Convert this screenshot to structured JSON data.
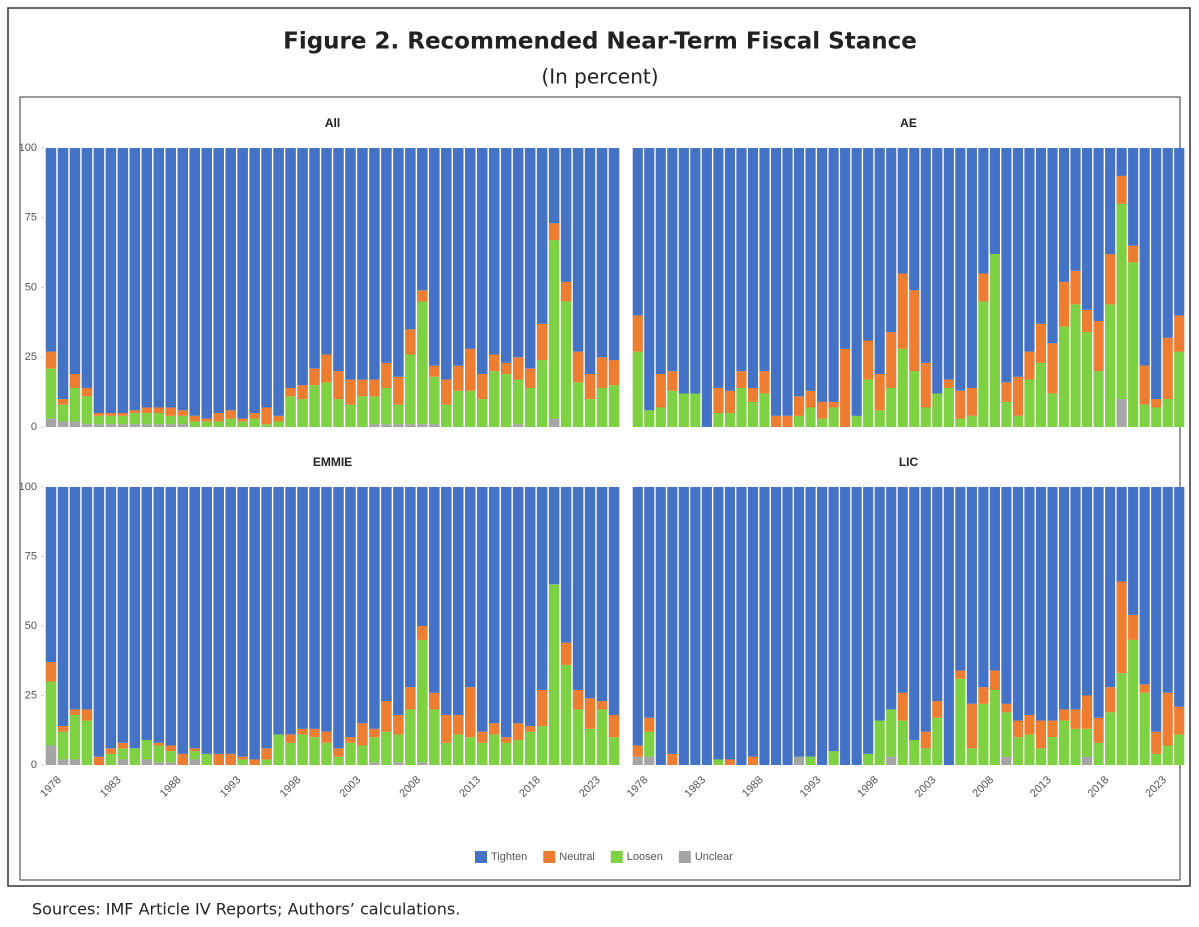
{
  "figure": {
    "title": "Figure 2. Recommended Near-Term Fiscal Stance",
    "subtitle": "(In percent)"
  },
  "source": "Sources: IMF Article IV Reports; Authors’ calculations.",
  "chart_data": [
    {
      "type": "bar",
      "stacked": true,
      "title": "All",
      "ylim": [
        0,
        100
      ],
      "yticks": [
        0,
        25,
        50,
        75,
        100
      ],
      "series": [
        {
          "name": "Tighten",
          "color": "#4472c4",
          "values": [
            73,
            90,
            81,
            86,
            95,
            95,
            95,
            94,
            93,
            93,
            93,
            94,
            96,
            97,
            95,
            94,
            97,
            95,
            93,
            96,
            86,
            85,
            79,
            74,
            80,
            83,
            83,
            83,
            77,
            82,
            65,
            51,
            78,
            83,
            78,
            72,
            81,
            74,
            77,
            75,
            79,
            63,
            27,
            48,
            73,
            81,
            75,
            76
          ]
        },
        {
          "name": "Neutral",
          "color": "#ed7d31",
          "values": [
            6,
            2,
            5,
            3,
            1,
            1,
            1,
            1,
            2,
            2,
            3,
            2,
            2,
            1,
            3,
            3,
            1,
            2,
            6,
            2,
            3,
            5,
            6,
            10,
            10,
            9,
            6,
            6,
            9,
            10,
            9,
            4,
            4,
            9,
            9,
            15,
            9,
            6,
            4,
            8,
            7,
            13,
            6,
            7,
            11,
            9,
            11,
            9
          ]
        },
        {
          "name": "Loosen",
          "color": "#7ed143",
          "values": [
            18,
            6,
            12,
            10,
            3,
            3,
            3,
            4,
            4,
            4,
            3,
            3,
            2,
            2,
            2,
            3,
            2,
            3,
            1,
            2,
            11,
            10,
            15,
            16,
            10,
            8,
            11,
            10,
            13,
            7,
            25,
            44,
            17,
            8,
            13,
            13,
            10,
            20,
            19,
            16,
            14,
            24,
            64,
            45,
            16,
            10,
            14,
            15
          ]
        },
        {
          "name": "Unclear",
          "color": "#a5a5a5",
          "values": [
            3,
            2,
            2,
            1,
            1,
            1,
            1,
            1,
            1,
            1,
            1,
            1,
            0,
            0,
            0,
            0,
            0,
            0,
            0,
            0,
            0,
            0,
            0,
            0,
            0,
            0,
            0,
            1,
            1,
            1,
            1,
            1,
            1,
            0,
            0,
            0,
            0,
            0,
            0,
            1,
            0,
            0,
            3,
            0,
            0,
            0,
            0,
            0
          ]
        }
      ]
    },
    {
      "type": "bar",
      "stacked": true,
      "title": "AE",
      "ylim": [
        0,
        100
      ],
      "series": [
        {
          "name": "Tighten",
          "color": "#4472c4",
          "values": [
            60,
            94,
            81,
            80,
            88,
            88,
            100,
            86,
            87,
            80,
            86,
            80,
            96,
            96,
            89,
            87,
            91,
            91,
            72,
            96,
            69,
            81,
            66,
            45,
            51,
            77,
            88,
            83,
            87,
            86,
            45,
            38,
            84,
            82,
            73,
            63,
            70,
            48,
            44,
            58,
            62,
            38,
            10,
            35,
            78,
            90,
            68,
            60
          ]
        },
        {
          "name": "Neutral",
          "color": "#ed7d31",
          "values": [
            13,
            0,
            12,
            7,
            0,
            0,
            0,
            9,
            8,
            6,
            5,
            8,
            4,
            4,
            7,
            6,
            6,
            2,
            28,
            0,
            14,
            13,
            20,
            27,
            29,
            16,
            0,
            3,
            10,
            10,
            10,
            0,
            7,
            14,
            10,
            14,
            18,
            16,
            12,
            8,
            18,
            18,
            10,
            6,
            14,
            3,
            22,
            13
          ]
        },
        {
          "name": "Loosen",
          "color": "#7ed143",
          "values": [
            27,
            6,
            7,
            13,
            12,
            12,
            0,
            5,
            5,
            14,
            9,
            12,
            0,
            0,
            4,
            7,
            3,
            7,
            0,
            4,
            17,
            6,
            14,
            28,
            20,
            7,
            12,
            14,
            3,
            4,
            45,
            62,
            9,
            4,
            17,
            23,
            12,
            36,
            44,
            34,
            20,
            44,
            70,
            59,
            8,
            7,
            10,
            27
          ]
        },
        {
          "name": "Unclear",
          "color": "#a5a5a5",
          "values": [
            0,
            0,
            0,
            0,
            0,
            0,
            0,
            0,
            0,
            0,
            0,
            0,
            0,
            0,
            0,
            0,
            0,
            0,
            0,
            0,
            0,
            0,
            0,
            0,
            0,
            0,
            0,
            0,
            0,
            0,
            0,
            0,
            0,
            0,
            0,
            0,
            0,
            0,
            0,
            0,
            0,
            0,
            10,
            0,
            0,
            0,
            0,
            0
          ]
        }
      ]
    },
    {
      "type": "bar",
      "stacked": true,
      "title": "EMMIE",
      "ylim": [
        0,
        100
      ],
      "yticks": [
        0,
        25,
        50,
        75,
        100
      ],
      "categories": [
        "1978",
        null,
        null,
        null,
        null,
        "1983",
        null,
        null,
        null,
        null,
        "1988",
        null,
        null,
        null,
        null,
        "1993",
        null,
        null,
        null,
        null,
        "1998",
        null,
        null,
        null,
        null,
        "2003",
        null,
        null,
        null,
        null,
        "2008",
        null,
        null,
        null,
        null,
        "2013",
        null,
        null,
        null,
        null,
        "2018",
        null,
        null,
        null,
        null,
        "2023",
        null,
        null
      ],
      "series": [
        {
          "name": "Tighten",
          "color": "#4472c4",
          "values": [
            63,
            86,
            80,
            80,
            97,
            94,
            92,
            94,
            91,
            92,
            93,
            96,
            94,
            96,
            96,
            96,
            97,
            98,
            94,
            89,
            89,
            87,
            87,
            88,
            94,
            90,
            85,
            87,
            77,
            82,
            72,
            50,
            74,
            82,
            82,
            72,
            88,
            85,
            90,
            85,
            86,
            73,
            35,
            56,
            73,
            76,
            77,
            82
          ]
        },
        {
          "name": "Neutral",
          "color": "#ed7d31",
          "values": [
            7,
            2,
            2,
            4,
            3,
            2,
            2,
            0,
            0,
            1,
            2,
            4,
            1,
            0,
            4,
            4,
            1,
            2,
            4,
            0,
            3,
            2,
            3,
            4,
            3,
            2,
            8,
            3,
            11,
            7,
            8,
            5,
            6,
            10,
            7,
            18,
            4,
            4,
            2,
            6,
            2,
            13,
            0,
            8,
            7,
            11,
            3,
            8
          ]
        },
        {
          "name": "Loosen",
          "color": "#7ed143",
          "values": [
            23,
            10,
            16,
            16,
            0,
            4,
            4,
            6,
            7,
            6,
            4,
            0,
            3,
            4,
            0,
            0,
            2,
            0,
            2,
            11,
            8,
            11,
            10,
            8,
            3,
            8,
            7,
            9,
            12,
            10,
            20,
            44,
            20,
            8,
            11,
            10,
            8,
            11,
            8,
            9,
            12,
            14,
            65,
            36,
            20,
            13,
            20,
            10
          ]
        },
        {
          "name": "Unclear",
          "color": "#a5a5a5",
          "values": [
            7,
            2,
            2,
            0,
            0,
            0,
            2,
            0,
            2,
            1,
            1,
            0,
            2,
            0,
            0,
            0,
            0,
            0,
            0,
            0,
            0,
            0,
            0,
            0,
            0,
            0,
            0,
            1,
            0,
            1,
            0,
            1,
            0,
            0,
            0,
            0,
            0,
            0,
            0,
            0,
            0,
            0,
            0,
            0,
            0,
            0,
            0,
            0
          ]
        }
      ]
    },
    {
      "type": "bar",
      "stacked": true,
      "title": "LIC",
      "ylim": [
        0,
        100
      ],
      "categories": [
        "1978",
        null,
        null,
        null,
        null,
        "1983",
        null,
        null,
        null,
        null,
        "1988",
        null,
        null,
        null,
        null,
        "1993",
        null,
        null,
        null,
        null,
        "1998",
        null,
        null,
        null,
        null,
        "2003",
        null,
        null,
        null,
        null,
        "2008",
        null,
        null,
        null,
        null,
        "2013",
        null,
        null,
        null,
        null,
        "2018",
        null,
        null,
        null,
        null,
        "2023",
        null,
        null
      ],
      "series": [
        {
          "name": "Tighten",
          "color": "#4472c4",
          "values": [
            93,
            83,
            100,
            96,
            100,
            100,
            100,
            98,
            98,
            100,
            97,
            100,
            100,
            100,
            97,
            97,
            100,
            95,
            100,
            100,
            96,
            84,
            80,
            74,
            91,
            88,
            77,
            100,
            66,
            78,
            72,
            66,
            78,
            84,
            82,
            84,
            84,
            80,
            80,
            75,
            83,
            72,
            34,
            46,
            71,
            88,
            74,
            79
          ]
        },
        {
          "name": "Neutral",
          "color": "#ed7d31",
          "values": [
            4,
            5,
            0,
            4,
            0,
            0,
            0,
            0,
            2,
            0,
            3,
            0,
            0,
            0,
            0,
            0,
            0,
            0,
            0,
            0,
            0,
            0,
            0,
            10,
            0,
            6,
            6,
            0,
            3,
            16,
            6,
            7,
            3,
            6,
            7,
            10,
            6,
            4,
            7,
            12,
            9,
            9,
            33,
            9,
            3,
            8,
            19,
            10
          ]
        },
        {
          "name": "Loosen",
          "color": "#7ed143",
          "values": [
            0,
            9,
            0,
            0,
            0,
            0,
            0,
            2,
            0,
            0,
            0,
            0,
            0,
            0,
            0,
            3,
            0,
            5,
            0,
            0,
            4,
            16,
            17,
            16,
            9,
            6,
            17,
            0,
            31,
            6,
            22,
            27,
            16,
            10,
            11,
            6,
            10,
            16,
            13,
            10,
            8,
            19,
            33,
            45,
            26,
            4,
            7,
            11
          ]
        },
        {
          "name": "Unclear",
          "color": "#a5a5a5",
          "values": [
            3,
            3,
            0,
            0,
            0,
            0,
            0,
            0,
            0,
            0,
            0,
            0,
            0,
            0,
            3,
            0,
            0,
            0,
            0,
            0,
            0,
            0,
            3,
            0,
            0,
            0,
            0,
            0,
            0,
            0,
            0,
            0,
            3,
            0,
            0,
            0,
            0,
            0,
            0,
            3,
            0,
            0,
            0,
            0,
            0,
            0,
            0,
            0
          ]
        }
      ]
    }
  ]
}
